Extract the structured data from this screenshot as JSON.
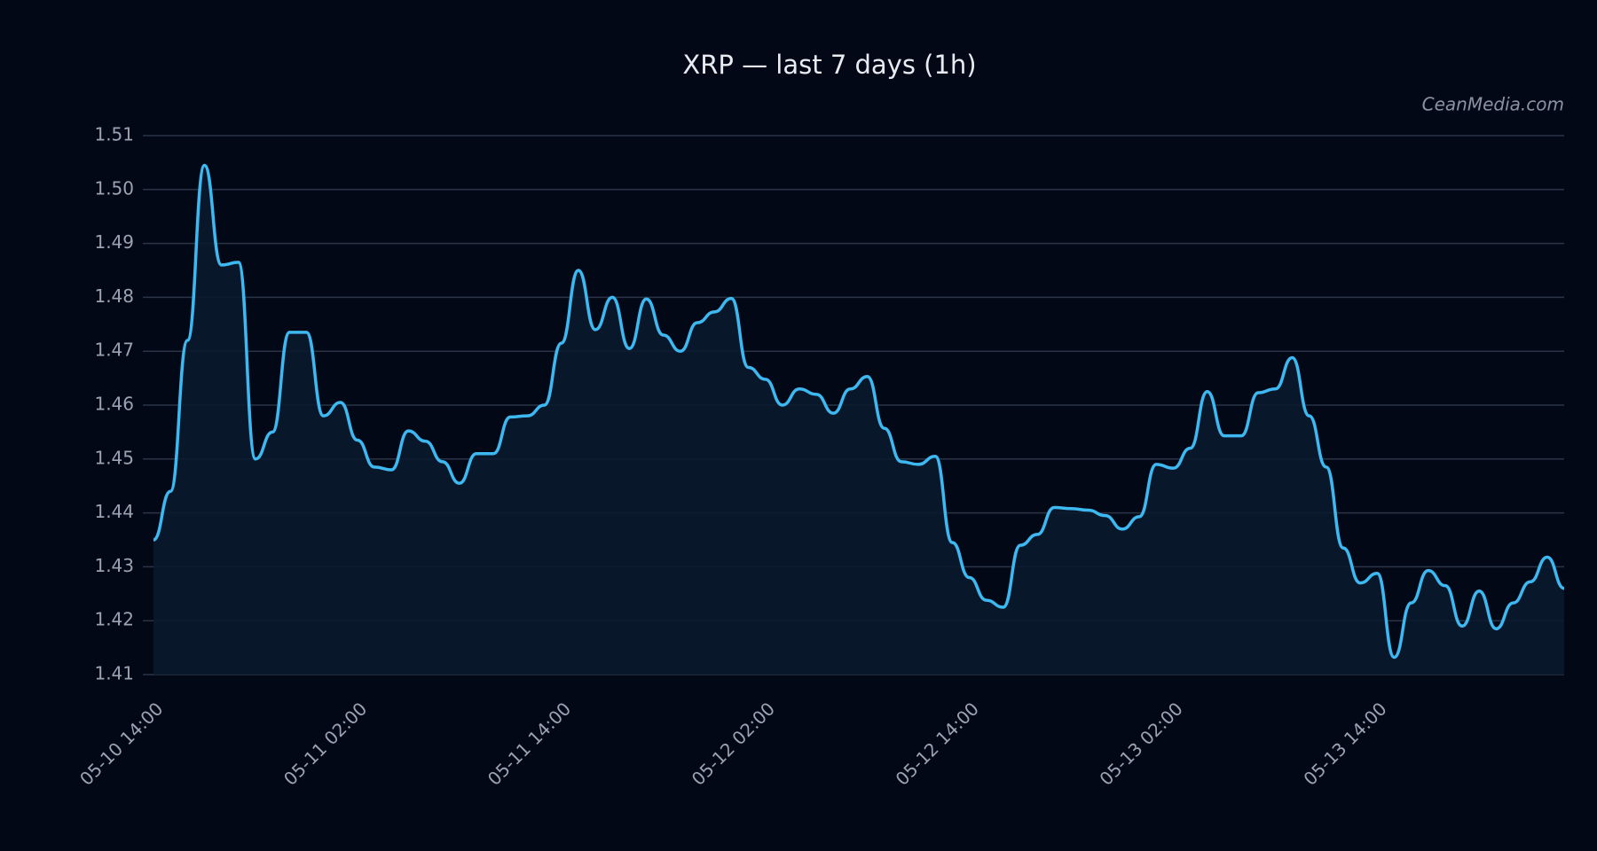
{
  "chart_data": {
    "type": "line",
    "title": "XRP — last 7 days (1h)",
    "watermark": "CeanMedia.com",
    "categories": [
      "05-10 14:00",
      null,
      null,
      null,
      null,
      null,
      null,
      null,
      null,
      null,
      null,
      null,
      "05-11 02:00",
      null,
      null,
      null,
      null,
      null,
      null,
      null,
      null,
      null,
      null,
      null,
      "05-11 14:00",
      null,
      null,
      null,
      null,
      null,
      null,
      null,
      null,
      null,
      null,
      null,
      "05-12 02:00",
      null,
      null,
      null,
      null,
      null,
      null,
      null,
      null,
      null,
      null,
      null,
      "05-12 14:00",
      null,
      null,
      null,
      null,
      null,
      null,
      null,
      null,
      null,
      null,
      null,
      "05-13 02:00",
      null,
      null,
      null,
      null,
      null,
      null,
      null,
      null,
      null,
      null,
      null,
      "05-13 14:00",
      null,
      null,
      null,
      null,
      null,
      null,
      null,
      null,
      null,
      null,
      null
    ],
    "series": [
      {
        "color": "#3db8f0",
        "values": [
          1.435,
          1.444,
          1.472,
          1.5045,
          1.486,
          1.4865,
          1.45,
          1.455,
          1.4735,
          1.4735,
          1.458,
          1.4605,
          1.4535,
          1.4485,
          1.448,
          1.4552,
          1.4533,
          1.4495,
          1.4455,
          1.451,
          1.451,
          1.4578,
          1.458,
          1.46,
          1.4715,
          1.485,
          1.474,
          1.48,
          1.4705,
          1.4797,
          1.473,
          1.47,
          1.4753,
          1.4773,
          1.4798,
          1.467,
          1.4648,
          1.46,
          1.463,
          1.462,
          1.4585,
          1.463,
          1.4653,
          1.4557,
          1.4495,
          1.449,
          1.4505,
          1.4345,
          1.428,
          1.4238,
          1.4225,
          1.434,
          1.436,
          1.441,
          1.4408,
          1.4405,
          1.4395,
          1.437,
          1.4393,
          1.449,
          1.4483,
          1.452,
          1.4625,
          1.4543,
          1.4543,
          1.4623,
          1.463,
          1.4688,
          1.458,
          1.4485,
          1.4335,
          1.427,
          1.4288,
          1.4132,
          1.4233,
          1.4293,
          1.4265,
          1.419,
          1.4255,
          1.4185,
          1.4233,
          1.4272,
          1.4318,
          1.426
        ]
      }
    ],
    "ylim": [
      1.41,
      1.51
    ],
    "yticks": [
      {
        "value": 1.41,
        "label": "1.41"
      },
      {
        "value": 1.42,
        "label": "1.42"
      },
      {
        "value": 1.43,
        "label": "1.43"
      },
      {
        "value": 1.44,
        "label": "1.44"
      },
      {
        "value": 1.45,
        "label": "1.45"
      },
      {
        "value": 1.46,
        "label": "1.46"
      },
      {
        "value": 1.47,
        "label": "1.47"
      },
      {
        "value": 1.48,
        "label": "1.48"
      },
      {
        "value": 1.49,
        "label": "1.49"
      },
      {
        "value": 1.5,
        "label": "1.50"
      },
      {
        "value": 1.51,
        "label": "1.51"
      }
    ],
    "grid": true,
    "area": true
  }
}
